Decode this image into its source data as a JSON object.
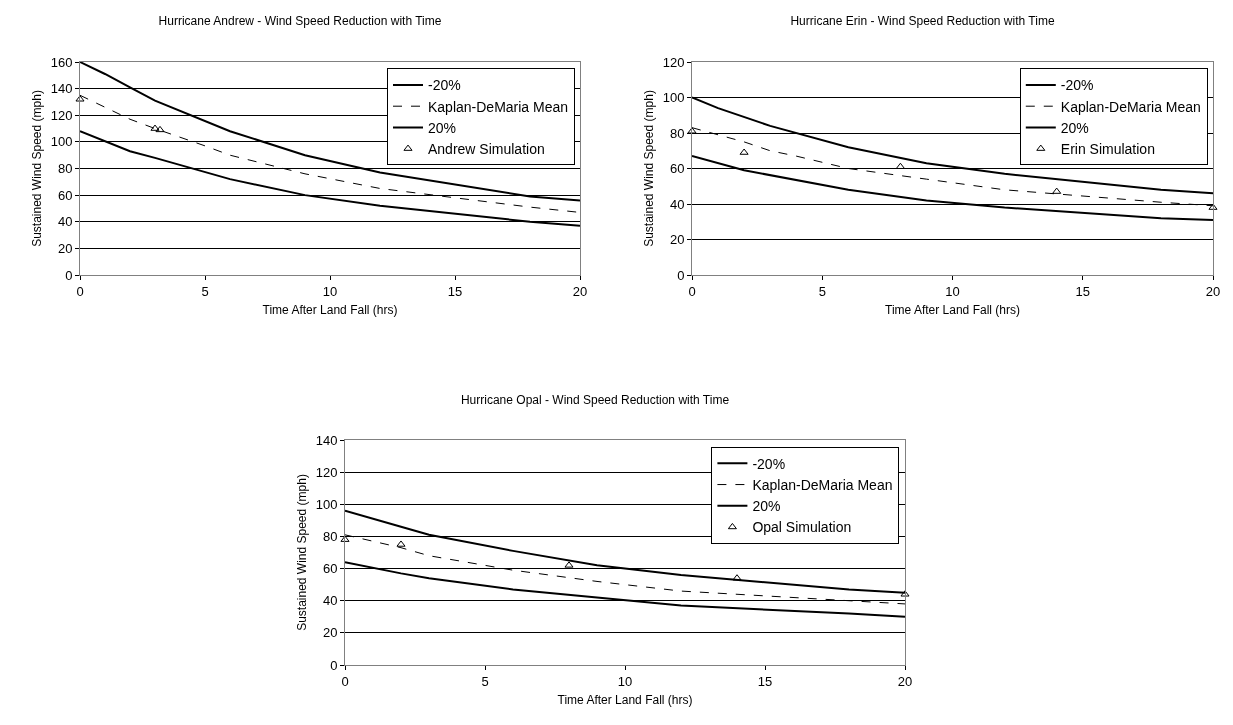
{
  "chart_data": [
    {
      "type": "line",
      "title": "Hurricane Andrew - Wind Speed Reduction with Time",
      "xlabel": "Time After Land Fall (hrs)",
      "ylabel": "Sustained Wind Speed (mph)",
      "xlim": [
        0,
        20
      ],
      "xticks": [
        0,
        5,
        10,
        15,
        20
      ],
      "ylim": [
        0,
        160
      ],
      "yticks": [
        0,
        20,
        40,
        60,
        80,
        100,
        120,
        140,
        160
      ],
      "grid": "y",
      "legend": "top right",
      "series": [
        {
          "name": "-20%",
          "color": "#000000",
          "line_style": "solid",
          "x": [
            0,
            2,
            3,
            6,
            9,
            12,
            18,
            20
          ],
          "values": [
            108,
            93,
            88,
            72,
            60,
            52,
            40,
            37
          ]
        },
        {
          "name": "Kaplan-DeMaria Mean",
          "color": "#000000",
          "line_style": "dashed",
          "x": [
            0,
            2,
            3,
            5,
            6,
            9,
            12,
            18,
            20
          ],
          "values": [
            135,
            117,
            110,
            97,
            90,
            76,
            65,
            51,
            47
          ]
        },
        {
          "name": "20%",
          "color": "#000000",
          "line_style": "solid",
          "x": [
            0,
            1,
            2,
            3,
            6,
            9,
            12,
            18,
            20
          ],
          "values": [
            160,
            151,
            141,
            131,
            108,
            90,
            77,
            59,
            56
          ]
        },
        {
          "name": "Andrew Simulation",
          "type": "scatter",
          "marker": "triangle",
          "color": "#000000",
          "x": [
            0,
            3,
            3.2
          ],
          "values": [
            132,
            110,
            109
          ]
        }
      ]
    },
    {
      "type": "line",
      "title": "Hurricane Erin - Wind Speed Reduction with Time",
      "xlabel": "Time After Land Fall (hrs)",
      "ylabel": "Sustained Wind Speed (mph)",
      "xlim": [
        0,
        20
      ],
      "xticks": [
        0,
        5,
        10,
        15,
        20
      ],
      "ylim": [
        0,
        120
      ],
      "yticks": [
        0,
        20,
        40,
        60,
        80,
        100,
        120
      ],
      "grid": "y",
      "legend": "top right",
      "series": [
        {
          "name": "-20%",
          "color": "#000000",
          "line_style": "solid",
          "x": [
            0,
            2,
            6,
            9,
            12,
            18,
            20
          ],
          "values": [
            67,
            59,
            48,
            42,
            38,
            32,
            31
          ]
        },
        {
          "name": "Kaplan-DeMaria Mean",
          "color": "#000000",
          "line_style": "dashed",
          "x": [
            0,
            2,
            3,
            4,
            6,
            9,
            12,
            18,
            20
          ],
          "values": [
            83,
            75,
            70,
            67,
            60,
            54,
            48,
            41,
            39
          ]
        },
        {
          "name": "20%",
          "color": "#000000",
          "line_style": "solid",
          "x": [
            0,
            1,
            3,
            6,
            9,
            12,
            18,
            20
          ],
          "values": [
            100,
            94,
            84,
            72,
            63,
            57,
            48,
            46
          ]
        },
        {
          "name": "Erin Simulation",
          "type": "scatter",
          "marker": "triangle",
          "color": "#000000",
          "x": [
            0,
            2,
            8,
            14,
            20
          ],
          "values": [
            81,
            69,
            61,
            47,
            38
          ]
        }
      ]
    },
    {
      "type": "line",
      "title": "Hurricane Opal - Wind Speed Reduction with Time",
      "xlabel": "Time After Land Fall (hrs)",
      "ylabel": "Sustained Wind Speed (mph)",
      "xlim": [
        0,
        20
      ],
      "xticks": [
        0,
        5,
        10,
        15,
        20
      ],
      "ylim": [
        0,
        140
      ],
      "yticks": [
        0,
        20,
        40,
        60,
        80,
        100,
        120,
        140
      ],
      "grid": "y",
      "legend": "top right",
      "series": [
        {
          "name": "-20%",
          "color": "#000000",
          "line_style": "solid",
          "x": [
            0,
            2,
            3,
            6,
            9,
            12,
            18,
            20
          ],
          "values": [
            64,
            57,
            54,
            47,
            42,
            37,
            32,
            30
          ]
        },
        {
          "name": "Kaplan-DeMaria Mean",
          "color": "#000000",
          "line_style": "dashed",
          "x": [
            0,
            2,
            3,
            6,
            9,
            12,
            18,
            20
          ],
          "values": [
            81,
            73,
            68,
            59,
            52,
            46,
            40,
            38
          ]
        },
        {
          "name": "20%",
          "color": "#000000",
          "line_style": "solid",
          "x": [
            0,
            2,
            3,
            6,
            9,
            12,
            18,
            20
          ],
          "values": [
            96,
            86,
            81,
            71,
            62,
            56,
            47,
            45
          ]
        },
        {
          "name": "Opal Simulation",
          "type": "scatter",
          "marker": "triangle",
          "color": "#000000",
          "x": [
            0,
            2,
            8,
            14,
            20
          ],
          "values": [
            78,
            75,
            62,
            54,
            44
          ]
        }
      ]
    }
  ]
}
